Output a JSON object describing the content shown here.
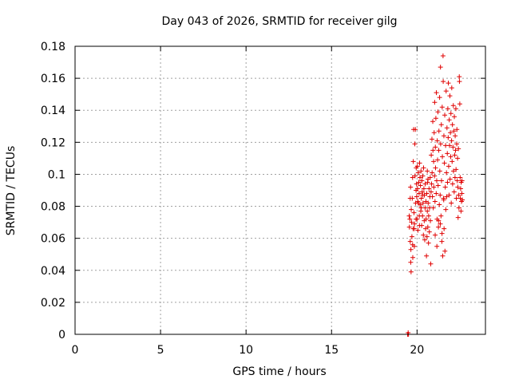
{
  "chart_data": {
    "type": "scatter",
    "title": "Day 043 of 2026, SRMTID for receiver gilg",
    "xlabel": "GPS time / hours",
    "ylabel": "SRMTID / TECUs",
    "xlim": [
      0,
      24
    ],
    "ylim": [
      0,
      0.18
    ],
    "xticks": [
      0,
      5,
      10,
      15,
      20
    ],
    "yticks": [
      0,
      0.02,
      0.04,
      0.06,
      0.08,
      0.1,
      0.12,
      0.14,
      0.16,
      0.18
    ],
    "xtick_labels": [
      "0",
      "5",
      "10",
      "15",
      "20"
    ],
    "ytick_labels": [
      "0",
      "0.02",
      "0.04",
      "0.06",
      "0.08",
      "0.1",
      "0.12",
      "0.14",
      "0.16",
      "0.18"
    ],
    "grid": true,
    "marker": "+",
    "color": "#e00000",
    "series": [
      {
        "points": [
          [
            19.45,
            0.0
          ],
          [
            19.48,
            0.001
          ],
          [
            19.5,
            0.0
          ],
          [
            19.55,
            0.067
          ],
          [
            19.58,
            0.072
          ],
          [
            19.6,
            0.058
          ],
          [
            19.62,
            0.092
          ],
          [
            19.63,
            0.045
          ],
          [
            19.65,
            0.039
          ],
          [
            19.66,
            0.078
          ],
          [
            19.68,
            0.07
          ],
          [
            19.7,
            0.061
          ],
          [
            19.72,
            0.085
          ],
          [
            19.74,
            0.098
          ],
          [
            19.75,
            0.048
          ],
          [
            19.77,
            0.066
          ],
          [
            19.78,
            0.108
          ],
          [
            19.8,
            0.128
          ],
          [
            19.82,
            0.076
          ],
          [
            19.84,
            0.055
          ],
          [
            19.85,
            0.069
          ],
          [
            19.87,
            0.119
          ],
          [
            19.88,
            0.099
          ],
          [
            19.9,
            0.128
          ],
          [
            19.92,
            0.082
          ],
          [
            19.94,
            0.09
          ],
          [
            19.95,
            0.104
          ],
          [
            19.97,
            0.094
          ],
          [
            19.98,
            0.086
          ],
          [
            20.0,
            0.072
          ],
          [
            20.02,
            0.105
          ],
          [
            20.03,
            0.091
          ],
          [
            20.05,
            0.065
          ],
          [
            20.07,
            0.101
          ],
          [
            20.08,
            0.082
          ],
          [
            20.1,
            0.095
          ],
          [
            20.12,
            0.088
          ],
          [
            20.13,
            0.074
          ],
          [
            20.15,
            0.107
          ],
          [
            20.17,
            0.098
          ],
          [
            20.18,
            0.081
          ],
          [
            20.2,
            0.093
          ],
          [
            20.22,
            0.077
          ],
          [
            20.23,
            0.102
          ],
          [
            20.25,
            0.085
          ],
          [
            20.27,
            0.068
          ],
          [
            20.28,
            0.096
          ],
          [
            20.3,
            0.089
          ],
          [
            20.32,
            0.074
          ],
          [
            20.33,
            0.099
          ],
          [
            20.35,
            0.082
          ],
          [
            20.37,
            0.062
          ],
          [
            20.38,
            0.104
          ],
          [
            20.4,
            0.091
          ],
          [
            20.42,
            0.071
          ],
          [
            20.43,
            0.087
          ],
          [
            20.45,
            0.059
          ],
          [
            20.47,
            0.079
          ],
          [
            20.48,
            0.094
          ],
          [
            20.5,
            0.066
          ],
          [
            20.52,
            0.083
          ],
          [
            20.53,
            0.072
          ],
          [
            20.55,
            0.049
          ],
          [
            20.57,
            0.088
          ],
          [
            20.58,
            0.061
          ],
          [
            20.6,
            0.077
          ],
          [
            20.62,
            0.095
          ],
          [
            20.63,
            0.067
          ],
          [
            20.65,
            0.082
          ],
          [
            20.67,
            0.057
          ],
          [
            20.68,
            0.074
          ],
          [
            20.7,
            0.091
          ],
          [
            20.72,
            0.064
          ],
          [
            20.73,
            0.079
          ],
          [
            20.75,
            0.086
          ],
          [
            20.77,
            0.098
          ],
          [
            20.78,
            0.071
          ],
          [
            20.8,
            0.044
          ],
          [
            20.82,
            0.089
          ],
          [
            20.83,
            0.112
          ],
          [
            20.85,
            0.094
          ],
          [
            20.87,
            0.122
          ],
          [
            20.88,
            0.101
          ],
          [
            20.9,
            0.086
          ],
          [
            20.92,
            0.133
          ],
          [
            20.93,
            0.115
          ],
          [
            20.95,
            0.079
          ],
          [
            20.97,
            0.108
          ],
          [
            20.98,
            0.092
          ],
          [
            21.0,
            0.126
          ],
          [
            21.02,
            0.099
          ],
          [
            21.03,
            0.145
          ],
          [
            21.05,
            0.083
          ],
          [
            21.07,
            0.117
          ],
          [
            21.08,
            0.104
          ],
          [
            21.1,
            0.135
          ],
          [
            21.12,
            0.088
          ],
          [
            21.13,
            0.151
          ],
          [
            21.15,
            0.096
          ],
          [
            21.17,
            0.072
          ],
          [
            21.18,
            0.121
          ],
          [
            21.2,
            0.109
          ],
          [
            21.22,
            0.139
          ],
          [
            21.23,
            0.093
          ],
          [
            21.25,
            0.067
          ],
          [
            21.27,
            0.115
          ],
          [
            21.28,
            0.127
          ],
          [
            21.3,
            0.081
          ],
          [
            21.32,
            0.148
          ],
          [
            21.33,
            0.102
          ],
          [
            21.35,
            0.087
          ],
          [
            21.37,
            0.167
          ],
          [
            21.38,
            0.119
          ],
          [
            21.4,
            0.074
          ],
          [
            21.42,
            0.131
          ],
          [
            21.43,
            0.096
          ],
          [
            21.45,
            0.058
          ],
          [
            21.47,
            0.142
          ],
          [
            21.48,
            0.111
          ],
          [
            21.5,
            0.049
          ],
          [
            21.52,
            0.174
          ],
          [
            21.53,
            0.158
          ],
          [
            21.55,
            0.085
          ],
          [
            21.57,
            0.124
          ],
          [
            21.58,
            0.066
          ],
          [
            21.6,
            0.107
          ],
          [
            21.62,
            0.137
          ],
          [
            21.63,
            0.052
          ],
          [
            21.65,
            0.092
          ],
          [
            21.67,
            0.118
          ],
          [
            21.68,
            0.078
          ],
          [
            21.7,
            0.152
          ],
          [
            21.72,
            0.101
          ],
          [
            21.73,
            0.086
          ],
          [
            21.75,
            0.129
          ],
          [
            21.77,
            0.113
          ],
          [
            21.78,
            0.095
          ],
          [
            21.8,
            0.141
          ],
          [
            21.82,
            0.123
          ],
          [
            21.83,
            0.157
          ],
          [
            21.85,
            0.105
          ],
          [
            21.87,
            0.087
          ],
          [
            21.88,
            0.134
          ],
          [
            21.9,
            0.118
          ],
          [
            21.92,
            0.149
          ],
          [
            21.93,
            0.097
          ],
          [
            21.95,
            0.126
          ],
          [
            21.97,
            0.111
          ],
          [
            21.98,
            0.138
          ],
          [
            22.0,
            0.082
          ],
          [
            22.02,
            0.121
          ],
          [
            22.03,
            0.154
          ],
          [
            22.05,
            0.108
          ],
          [
            22.07,
            0.131
          ],
          [
            22.08,
            0.094
          ],
          [
            22.1,
            0.117
          ],
          [
            22.12,
            0.143
          ],
          [
            22.13,
            0.102
          ],
          [
            22.15,
            0.127
          ],
          [
            22.17,
            0.089
          ],
          [
            22.18,
            0.136
          ],
          [
            22.2,
            0.112
          ],
          [
            22.22,
            0.098
          ],
          [
            22.23,
            0.124
          ],
          [
            22.25,
            0.115
          ],
          [
            22.27,
            0.141
          ],
          [
            22.28,
            0.103
          ],
          [
            22.3,
            0.085
          ],
          [
            22.32,
            0.119
          ],
          [
            22.33,
            0.128
          ],
          [
            22.35,
            0.096
          ],
          [
            22.37,
            0.11
          ],
          [
            22.38,
            0.092
          ],
          [
            22.4,
            0.073
          ],
          [
            22.42,
            0.116
          ],
          [
            22.43,
            0.087
          ],
          [
            22.45,
            0.079
          ],
          [
            22.47,
            0.161
          ],
          [
            22.48,
            0.158
          ],
          [
            22.5,
            0.144
          ],
          [
            22.52,
            0.098
          ],
          [
            22.53,
            0.085
          ],
          [
            22.55,
            0.091
          ],
          [
            22.57,
            0.077
          ],
          [
            22.58,
            0.095
          ],
          [
            22.6,
            0.083
          ],
          [
            22.62,
            0.088
          ],
          [
            22.63,
            0.096
          ],
          [
            22.65,
            0.084
          ],
          [
            21.06,
            0.062
          ],
          [
            21.16,
            0.055
          ],
          [
            21.26,
            0.071
          ],
          [
            21.36,
            0.069
          ],
          [
            21.46,
            0.063
          ],
          [
            21.56,
            0.084
          ],
          [
            20.6,
            0.102
          ],
          [
            20.64,
            0.097
          ],
          [
            20.34,
            0.087
          ],
          [
            20.24,
            0.079
          ],
          [
            20.14,
            0.068
          ],
          [
            20.04,
            0.083
          ],
          [
            19.94,
            0.072
          ],
          [
            19.84,
            0.066
          ],
          [
            19.74,
            0.056
          ],
          [
            19.64,
            0.053
          ],
          [
            19.54,
            0.074
          ],
          [
            19.6,
            0.085
          ]
        ]
      }
    ]
  }
}
